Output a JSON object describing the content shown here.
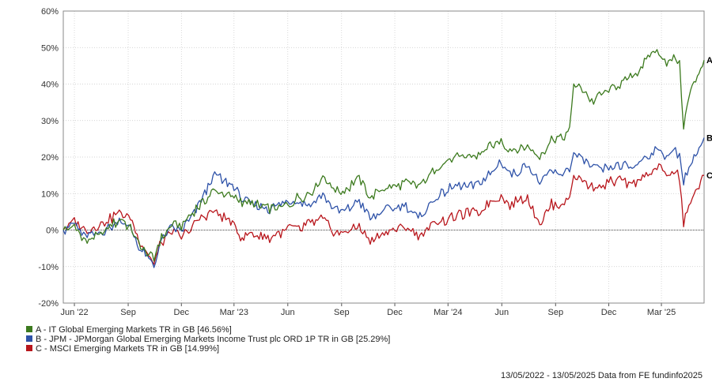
{
  "chart_data": {
    "type": "line",
    "title": "",
    "xlabel": "",
    "ylabel": "",
    "ylim": [
      -20,
      60
    ],
    "y_ticks": [
      "-20%",
      "-10%",
      "0%",
      "10%",
      "20%",
      "30%",
      "40%",
      "50%",
      "60%"
    ],
    "y_tick_values": [
      -20,
      -10,
      0,
      10,
      20,
      30,
      40,
      50,
      60
    ],
    "x_range": [
      "2022-05-13",
      "2025-05-13"
    ],
    "x_ticks": [
      {
        "label": "Jun '22",
        "date": "2022-06-01"
      },
      {
        "label": "Sep",
        "date": "2022-09-01"
      },
      {
        "label": "Dec",
        "date": "2022-12-01"
      },
      {
        "label": "Mar '23",
        "date": "2023-03-01"
      },
      {
        "label": "Jun",
        "date": "2023-06-01"
      },
      {
        "label": "Sep",
        "date": "2023-09-01"
      },
      {
        "label": "Dec",
        "date": "2023-12-01"
      },
      {
        "label": "Mar '24",
        "date": "2024-03-01"
      },
      {
        "label": "Jun",
        "date": "2024-06-01"
      },
      {
        "label": "Sep",
        "date": "2024-09-01"
      },
      {
        "label": "Dec",
        "date": "2024-12-01"
      },
      {
        "label": "Mar '25",
        "date": "2025-03-01"
      }
    ],
    "grid": true,
    "legend_position": "bottom-left",
    "series": [
      {
        "letter": "A",
        "legend": "A - IT Global Emerging Markets TR in GB [46.56%]",
        "color": "#3c7a1e",
        "points": [
          [
            "2022-05-13",
            0
          ],
          [
            "2022-06-01",
            1
          ],
          [
            "2022-06-20",
            -3
          ],
          [
            "2022-07-10",
            -2
          ],
          [
            "2022-08-01",
            1
          ],
          [
            "2022-08-20",
            3
          ],
          [
            "2022-09-05",
            0
          ],
          [
            "2022-09-25",
            -5
          ],
          [
            "2022-10-15",
            -8
          ],
          [
            "2022-10-25",
            -3
          ],
          [
            "2022-11-15",
            2
          ],
          [
            "2022-12-01",
            1
          ],
          [
            "2022-12-20",
            5
          ],
          [
            "2023-01-10",
            8
          ],
          [
            "2023-01-27",
            11
          ],
          [
            "2023-02-15",
            10
          ],
          [
            "2023-03-01",
            9
          ],
          [
            "2023-03-15",
            8
          ],
          [
            "2023-04-01",
            7
          ],
          [
            "2023-05-01",
            6
          ],
          [
            "2023-05-20",
            6
          ],
          [
            "2023-06-01",
            7
          ],
          [
            "2023-06-20",
            9
          ],
          [
            "2023-07-10",
            10
          ],
          [
            "2023-07-31",
            15
          ],
          [
            "2023-08-15",
            12
          ],
          [
            "2023-08-31",
            11
          ],
          [
            "2023-09-15",
            12
          ],
          [
            "2023-10-01",
            14
          ],
          [
            "2023-10-20",
            9
          ],
          [
            "2023-11-10",
            11
          ],
          [
            "2023-12-01",
            12
          ],
          [
            "2023-12-20",
            13
          ],
          [
            "2024-01-10",
            12
          ],
          [
            "2024-01-25",
            14
          ],
          [
            "2024-02-10",
            17
          ],
          [
            "2024-03-01",
            19
          ],
          [
            "2024-03-20",
            20
          ],
          [
            "2024-04-10",
            20
          ],
          [
            "2024-04-25",
            21
          ],
          [
            "2024-05-15",
            23
          ],
          [
            "2024-05-31",
            24
          ],
          [
            "2024-06-15",
            22
          ],
          [
            "2024-07-01",
            22
          ],
          [
            "2024-07-15",
            23
          ],
          [
            "2024-08-05",
            20
          ],
          [
            "2024-08-25",
            25
          ],
          [
            "2024-09-10",
            25
          ],
          [
            "2024-09-25",
            27
          ],
          [
            "2024-10-02",
            40
          ],
          [
            "2024-10-20",
            38
          ],
          [
            "2024-11-05",
            35
          ],
          [
            "2024-11-15",
            37
          ],
          [
            "2024-12-01",
            38
          ],
          [
            "2024-12-20",
            40
          ],
          [
            "2025-01-10",
            42
          ],
          [
            "2025-01-31",
            46
          ],
          [
            "2025-02-15",
            49
          ],
          [
            "2025-02-28",
            48
          ],
          [
            "2025-03-10",
            46
          ],
          [
            "2025-03-25",
            47
          ],
          [
            "2025-04-01",
            45
          ],
          [
            "2025-04-08",
            29
          ],
          [
            "2025-04-20",
            38
          ],
          [
            "2025-05-13",
            46.56
          ]
        ]
      },
      {
        "letter": "B",
        "legend": "B - JPM - JPMorgan Global Emerging Markets Income Trust plc ORD 1P TR in GB [25.29%]",
        "color": "#2e52a8",
        "points": [
          [
            "2022-05-13",
            0
          ],
          [
            "2022-06-01",
            2
          ],
          [
            "2022-06-20",
            -2
          ],
          [
            "2022-07-10",
            -1
          ],
          [
            "2022-08-01",
            1
          ],
          [
            "2022-08-20",
            3
          ],
          [
            "2022-09-05",
            0
          ],
          [
            "2022-09-25",
            -6
          ],
          [
            "2022-10-15",
            -10
          ],
          [
            "2022-10-25",
            -4
          ],
          [
            "2022-11-15",
            1
          ],
          [
            "2022-12-01",
            0
          ],
          [
            "2022-12-20",
            4
          ],
          [
            "2023-01-10",
            10
          ],
          [
            "2023-01-27",
            15
          ],
          [
            "2023-02-15",
            13
          ],
          [
            "2023-03-01",
            12
          ],
          [
            "2023-03-15",
            8
          ],
          [
            "2023-04-01",
            7
          ],
          [
            "2023-05-01",
            6
          ],
          [
            "2023-05-20",
            7
          ],
          [
            "2023-06-01",
            8
          ],
          [
            "2023-06-20",
            8
          ],
          [
            "2023-07-10",
            7
          ],
          [
            "2023-07-31",
            10
          ],
          [
            "2023-08-15",
            7
          ],
          [
            "2023-08-31",
            5
          ],
          [
            "2023-09-15",
            6
          ],
          [
            "2023-10-01",
            8
          ],
          [
            "2023-10-20",
            3
          ],
          [
            "2023-11-10",
            5
          ],
          [
            "2023-12-01",
            6
          ],
          [
            "2023-12-20",
            7
          ],
          [
            "2024-01-10",
            3
          ],
          [
            "2024-01-25",
            6
          ],
          [
            "2024-02-10",
            9
          ],
          [
            "2024-03-01",
            11
          ],
          [
            "2024-03-20",
            12
          ],
          [
            "2024-04-10",
            12
          ],
          [
            "2024-04-25",
            13
          ],
          [
            "2024-05-15",
            16
          ],
          [
            "2024-05-31",
            19
          ],
          [
            "2024-06-15",
            15
          ],
          [
            "2024-07-01",
            16
          ],
          [
            "2024-07-15",
            18
          ],
          [
            "2024-08-05",
            13
          ],
          [
            "2024-08-25",
            16
          ],
          [
            "2024-09-10",
            15
          ],
          [
            "2024-09-25",
            17
          ],
          [
            "2024-10-02",
            21
          ],
          [
            "2024-10-20",
            19
          ],
          [
            "2024-11-05",
            17
          ],
          [
            "2024-11-15",
            16
          ],
          [
            "2024-12-01",
            17
          ],
          [
            "2024-12-20",
            18
          ],
          [
            "2025-01-10",
            17
          ],
          [
            "2025-01-31",
            20
          ],
          [
            "2025-02-15",
            21
          ],
          [
            "2025-02-28",
            22
          ],
          [
            "2025-03-10",
            20
          ],
          [
            "2025-03-25",
            22
          ],
          [
            "2025-04-01",
            20
          ],
          [
            "2025-04-08",
            14
          ],
          [
            "2025-04-20",
            18
          ],
          [
            "2025-05-13",
            25.29
          ]
        ]
      },
      {
        "letter": "C",
        "legend": "C - MSCI Emerging Markets TR in GB [14.99%]",
        "color": "#b8161c",
        "points": [
          [
            "2022-05-13",
            0
          ],
          [
            "2022-06-01",
            3
          ],
          [
            "2022-06-20",
            0
          ],
          [
            "2022-07-10",
            1
          ],
          [
            "2022-08-01",
            3
          ],
          [
            "2022-08-20",
            5
          ],
          [
            "2022-09-05",
            3
          ],
          [
            "2022-09-25",
            -4
          ],
          [
            "2022-10-15",
            -9
          ],
          [
            "2022-10-25",
            -4
          ],
          [
            "2022-11-15",
            0
          ],
          [
            "2022-12-01",
            -2
          ],
          [
            "2022-12-20",
            1
          ],
          [
            "2023-01-10",
            4
          ],
          [
            "2023-01-27",
            5
          ],
          [
            "2023-02-15",
            3
          ],
          [
            "2023-03-01",
            1
          ],
          [
            "2023-03-15",
            -2
          ],
          [
            "2023-04-01",
            -1
          ],
          [
            "2023-05-01",
            -2
          ],
          [
            "2023-05-20",
            -1
          ],
          [
            "2023-06-01",
            1
          ],
          [
            "2023-06-20",
            0
          ],
          [
            "2023-07-10",
            2
          ],
          [
            "2023-07-31",
            3
          ],
          [
            "2023-08-15",
            0
          ],
          [
            "2023-08-31",
            -1
          ],
          [
            "2023-09-15",
            0
          ],
          [
            "2023-10-01",
            1
          ],
          [
            "2023-10-20",
            -3
          ],
          [
            "2023-11-10",
            -1
          ],
          [
            "2023-12-01",
            0
          ],
          [
            "2023-12-20",
            1
          ],
          [
            "2024-01-10",
            -2
          ],
          [
            "2024-01-25",
            0
          ],
          [
            "2024-02-10",
            2
          ],
          [
            "2024-03-01",
            3
          ],
          [
            "2024-03-20",
            4
          ],
          [
            "2024-04-10",
            5
          ],
          [
            "2024-04-25",
            5
          ],
          [
            "2024-05-15",
            8
          ],
          [
            "2024-05-31",
            9
          ],
          [
            "2024-06-15",
            7
          ],
          [
            "2024-07-01",
            8
          ],
          [
            "2024-07-15",
            9
          ],
          [
            "2024-08-05",
            2
          ],
          [
            "2024-08-25",
            7
          ],
          [
            "2024-09-10",
            7
          ],
          [
            "2024-09-25",
            9
          ],
          [
            "2024-10-02",
            15
          ],
          [
            "2024-10-20",
            13
          ],
          [
            "2024-11-05",
            12
          ],
          [
            "2024-11-15",
            12
          ],
          [
            "2024-12-01",
            13
          ],
          [
            "2024-12-20",
            14
          ],
          [
            "2025-01-10",
            12
          ],
          [
            "2025-01-31",
            15
          ],
          [
            "2025-02-15",
            16
          ],
          [
            "2025-02-28",
            17
          ],
          [
            "2025-03-10",
            15
          ],
          [
            "2025-03-25",
            16
          ],
          [
            "2025-04-01",
            14
          ],
          [
            "2025-04-08",
            2
          ],
          [
            "2025-04-20",
            8
          ],
          [
            "2025-05-13",
            14.99
          ]
        ]
      }
    ],
    "footer": "13/05/2022 - 13/05/2025 Data from FE fundinfo2025"
  }
}
